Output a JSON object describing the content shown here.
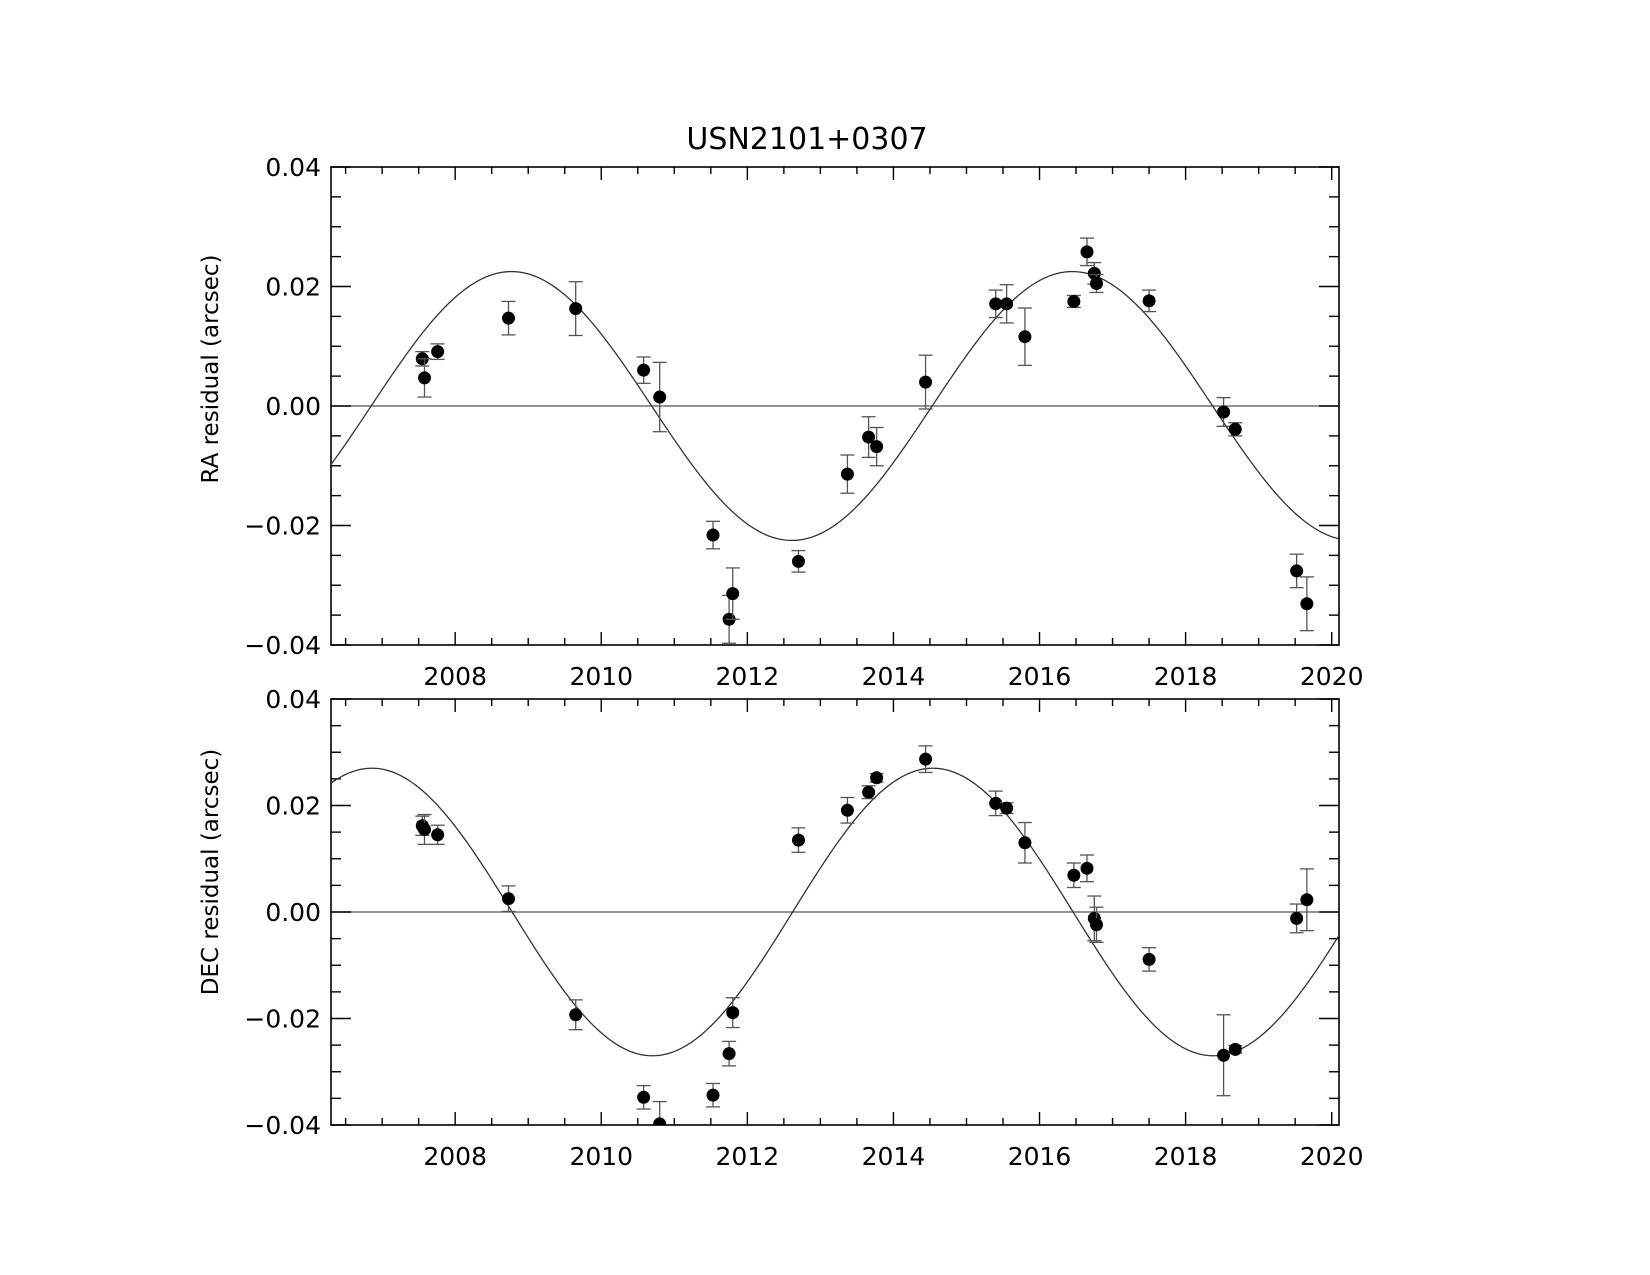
{
  "chart_data": [
    {
      "type": "scatter",
      "title": "USN2101+0307",
      "ylabel": "RA residual (arcsec)",
      "xlabel": "",
      "xlim": [
        2006.3,
        2020.1
      ],
      "ylim": [
        -0.04,
        0.04
      ],
      "x_ticks": [
        2008,
        2010,
        2012,
        2014,
        2016,
        2018,
        2020
      ],
      "x_tick_labels": [
        "2008",
        "2010",
        "2012",
        "2014",
        "2016",
        "2018",
        "2020"
      ],
      "y_ticks": [
        -0.04,
        -0.02,
        0.0,
        0.02,
        0.04
      ],
      "y_tick_labels": [
        "−0.04",
        "−0.02",
        "0.00",
        "0.02",
        "0.04"
      ],
      "grid": false,
      "zero_line": true,
      "model_curve": {
        "amplitude": 0.0225,
        "peak_year": 2008.77,
        "period_years": 7.68
      },
      "series": [
        {
          "x": [
            2007.55,
            2007.58,
            2007.76,
            2008.73,
            2009.65,
            2010.58,
            2010.8,
            2011.53,
            2011.75,
            2011.8,
            2012.7,
            2013.37,
            2013.66,
            2013.77,
            2014.44,
            2015.4,
            2015.55,
            2015.8,
            2016.47,
            2016.65,
            2016.75,
            2016.78,
            2017.5,
            2018.52,
            2018.68,
            2019.52,
            2019.66
          ],
          "y": [
            0.0079,
            0.0047,
            0.0091,
            0.0147,
            0.0163,
            0.006,
            0.0015,
            -0.0216,
            -0.0357,
            -0.0314,
            -0.026,
            -0.0114,
            -0.0052,
            -0.0068,
            0.004,
            0.0171,
            0.0171,
            0.0116,
            0.0175,
            0.0258,
            0.0222,
            0.0205,
            0.0176,
            -0.001,
            -0.0039,
            -0.0276,
            -0.0331
          ],
          "yerr": [
            0.0012,
            0.0032,
            0.0013,
            0.0028,
            0.0045,
            0.0022,
            0.0058,
            0.0023,
            0.004,
            0.0043,
            0.0018,
            0.0032,
            0.0034,
            0.0032,
            0.0045,
            0.0023,
            0.0032,
            0.0048,
            0.001,
            0.0023,
            0.0018,
            0.0015,
            0.0018,
            0.0024,
            0.0011,
            0.0028,
            0.0045
          ]
        }
      ]
    },
    {
      "type": "scatter",
      "title": "",
      "ylabel": "DEC residual (arcsec)",
      "xlabel": "",
      "xlim": [
        2006.3,
        2020.1
      ],
      "ylim": [
        -0.04,
        0.04
      ],
      "x_ticks": [
        2008,
        2010,
        2012,
        2014,
        2016,
        2018,
        2020
      ],
      "x_tick_labels": [
        "2008",
        "2010",
        "2012",
        "2014",
        "2016",
        "2018",
        "2020"
      ],
      "y_ticks": [
        -0.04,
        -0.02,
        0.0,
        0.02,
        0.04
      ],
      "y_tick_labels": [
        "−0.04",
        "−0.02",
        "0.00",
        "0.02",
        "0.04"
      ],
      "grid": false,
      "zero_line": true,
      "model_curve": {
        "amplitude": 0.027,
        "peak_year": 2014.54,
        "period_years": 7.68
      },
      "series": [
        {
          "x": [
            2007.55,
            2007.58,
            2007.76,
            2008.73,
            2009.65,
            2010.58,
            2010.8,
            2011.53,
            2011.75,
            2011.8,
            2012.7,
            2013.37,
            2013.66,
            2013.77,
            2014.44,
            2015.4,
            2015.55,
            2015.8,
            2016.47,
            2016.65,
            2016.75,
            2016.78,
            2017.5,
            2018.52,
            2018.68,
            2019.52,
            2019.66
          ],
          "y": [
            0.0162,
            0.0155,
            0.0145,
            0.0025,
            -0.0193,
            -0.0348,
            -0.0398,
            -0.0344,
            -0.0266,
            -0.0189,
            0.0135,
            0.0191,
            0.0225,
            0.0252,
            0.0287,
            0.0204,
            0.0195,
            0.013,
            0.0069,
            0.0082,
            -0.0012,
            -0.0024,
            -0.0089,
            -0.0269,
            -0.0258,
            -0.0012,
            0.0023
          ],
          "yerr": [
            0.0018,
            0.0028,
            0.0018,
            0.0024,
            0.0028,
            0.0022,
            0.0042,
            0.0022,
            0.0023,
            0.0028,
            0.0023,
            0.0024,
            0.0012,
            0.0008,
            0.0025,
            0.0023,
            0.001,
            0.0038,
            0.0023,
            0.0025,
            0.0042,
            0.0033,
            0.0022,
            0.0076,
            0.0007,
            0.0027,
            0.0058
          ]
        }
      ]
    }
  ]
}
